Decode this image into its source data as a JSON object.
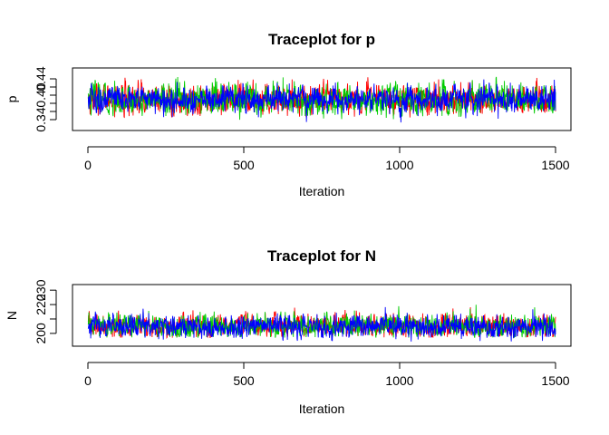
{
  "chart_data": [
    {
      "type": "line",
      "title": "Traceplot for p",
      "xlabel": "Iteration",
      "ylabel": "p",
      "xlim": [
        0,
        1500
      ],
      "ylim": [
        0.32,
        0.46
      ],
      "x_ticks": [
        0,
        500,
        1000,
        1500
      ],
      "x_tick_labels": [
        "0",
        "500",
        "1000",
        "1500"
      ],
      "y_ticks": [
        0.34,
        0.36,
        0.38,
        0.4,
        0.42,
        0.44
      ],
      "y_tick_labels": [
        "0.34",
        "",
        "",
        "0.40",
        "",
        "0.44"
      ],
      "grid": false,
      "legend": "none",
      "series": [
        {
          "color": "#ff0000",
          "iterations": 1500,
          "mean": 0.39,
          "sd": 0.018,
          "min": 0.345,
          "max": 0.445
        },
        {
          "color": "#00cc00",
          "iterations": 1500,
          "mean": 0.39,
          "sd": 0.019,
          "min": 0.338,
          "max": 0.452
        },
        {
          "color": "#0000ff",
          "iterations": 1500,
          "mean": 0.39,
          "sd": 0.017,
          "min": 0.332,
          "max": 0.447
        }
      ]
    },
    {
      "type": "line",
      "title": "Traceplot for N",
      "xlabel": "Iteration",
      "ylabel": "N",
      "xlim": [
        0,
        1500
      ],
      "ylim": [
        193,
        232
      ],
      "x_ticks": [
        0,
        500,
        1000,
        1500
      ],
      "x_tick_labels": [
        "0",
        "500",
        "1000",
        "1500"
      ],
      "y_ticks": [
        200,
        210,
        220,
        230
      ],
      "y_tick_labels": [
        "200",
        "",
        "220",
        "230"
      ],
      "grid": false,
      "legend": "none",
      "series": [
        {
          "color": "#ff0000",
          "iterations": 1500,
          "mean": 205,
          "sd": 4,
          "min": 197,
          "max": 229
        },
        {
          "color": "#00cc00",
          "iterations": 1500,
          "mean": 205,
          "sd": 4,
          "min": 197,
          "max": 228
        },
        {
          "color": "#0000ff",
          "iterations": 1500,
          "mean": 205,
          "sd": 4,
          "min": 194,
          "max": 232
        }
      ]
    }
  ]
}
